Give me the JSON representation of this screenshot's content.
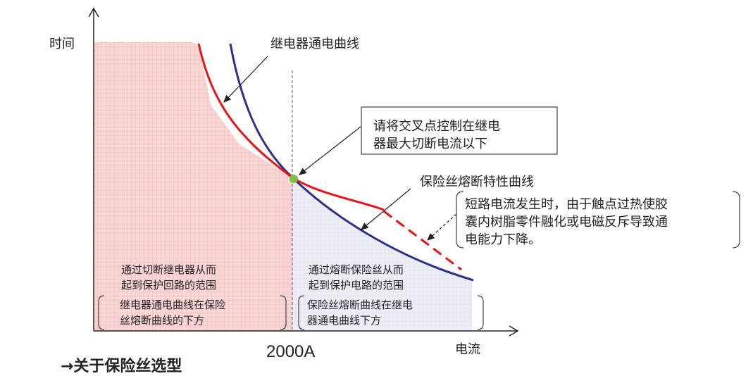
{
  "axes": {
    "y_label": "时间",
    "x_label": "电流",
    "x_marker": "2000A"
  },
  "callouts": {
    "relay_curve": "继电器通电曲线",
    "crosspoint_line1": "请将交叉点控制在继电",
    "crosspoint_line2": "器最大切断电流以下",
    "fuse_curve": "保险丝熔断特性曲线",
    "short_circuit_line1": "短路电流发生时，由于触点过热使胶",
    "short_circuit_line2": "囊内树脂零件融化或电磁反斥导致通",
    "short_circuit_line3": "电能力下降。"
  },
  "regions": {
    "left": {
      "title_line1": "通过切断继电器从而",
      "title_line2": "起到保护回路的范围",
      "note_line1": "继电器通电曲线在保险",
      "note_line2": "丝熔断曲线的下方"
    },
    "right": {
      "title_line1": "通过熔断保险丝从而",
      "title_line2": "起到保护电路的范围",
      "note_line1": "保险丝熔断曲线在继电",
      "note_line2": "器通电曲线下方"
    }
  },
  "footer": {
    "heading": "→关于保险丝选型"
  },
  "colors": {
    "relay_curve": "#e81416",
    "fuse_curve": "#2e2f8f",
    "crosspoint": "#7ac142",
    "left_region": "#f7c8c8",
    "right_region": "#e6e8f3"
  }
}
